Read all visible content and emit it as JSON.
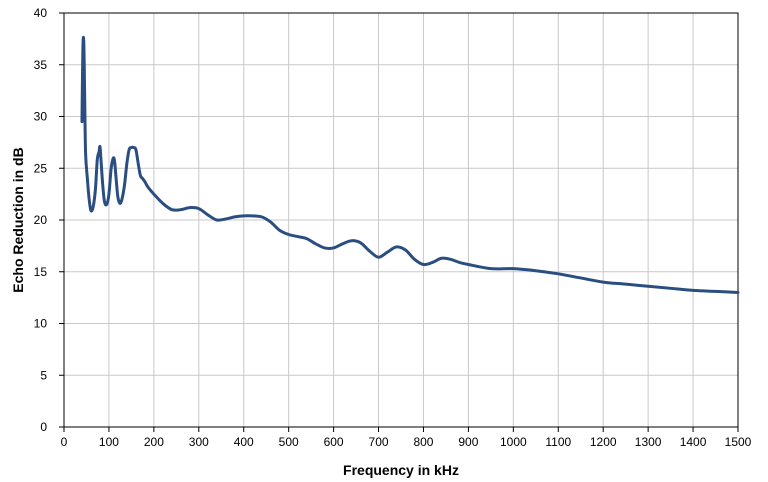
{
  "chart_data": {
    "type": "line",
    "title": "",
    "xlabel": "Frequency in kHz",
    "ylabel": "Echo Reduction in dB",
    "xlim": [
      0,
      1500
    ],
    "ylim": [
      0,
      40
    ],
    "x_ticks": [
      0,
      100,
      200,
      300,
      400,
      500,
      600,
      700,
      800,
      900,
      1000,
      1100,
      1200,
      1300,
      1400,
      1500
    ],
    "y_ticks": [
      0,
      5,
      10,
      15,
      20,
      25,
      30,
      35,
      40
    ],
    "grid": true,
    "legend": "none",
    "series": [
      {
        "color": "#2b4e80",
        "x": [
          40,
          42,
          44,
          46,
          48,
          52,
          56,
          60,
          65,
          70,
          74,
          78,
          80,
          82,
          86,
          90,
          95,
          100,
          105,
          110,
          113,
          116,
          120,
          125,
          130,
          135,
          140,
          145,
          150,
          155,
          160,
          165,
          170,
          175,
          180,
          185,
          190,
          200,
          220,
          240,
          260,
          280,
          300,
          320,
          340,
          360,
          380,
          400,
          420,
          440,
          460,
          480,
          500,
          520,
          540,
          560,
          580,
          600,
          620,
          640,
          660,
          680,
          700,
          720,
          740,
          760,
          780,
          800,
          820,
          840,
          860,
          880,
          900,
          950,
          1000,
          1050,
          1100,
          1150,
          1200,
          1250,
          1300,
          1350,
          1400,
          1450,
          1500
        ],
        "y": [
          29.5,
          36.5,
          37.2,
          32.0,
          26.5,
          24.0,
          22.0,
          20.9,
          21.3,
          23.0,
          25.8,
          26.6,
          27.1,
          26.0,
          23.5,
          21.8,
          21.5,
          22.5,
          25.0,
          26.0,
          25.5,
          24.0,
          22.2,
          21.6,
          22.2,
          23.5,
          25.5,
          26.8,
          27.0,
          27.0,
          26.8,
          25.5,
          24.3,
          24.0,
          23.7,
          23.3,
          23.0,
          22.5,
          21.6,
          21.0,
          21.0,
          21.2,
          21.1,
          20.5,
          20.0,
          20.1,
          20.3,
          20.4,
          20.4,
          20.3,
          19.8,
          19.0,
          18.6,
          18.4,
          18.2,
          17.7,
          17.3,
          17.3,
          17.7,
          18.0,
          17.8,
          17.0,
          16.4,
          16.9,
          17.4,
          17.1,
          16.2,
          15.7,
          15.9,
          16.3,
          16.2,
          15.9,
          15.7,
          15.3,
          15.3,
          15.1,
          14.8,
          14.4,
          14.0,
          13.8,
          13.6,
          13.4,
          13.2,
          13.1,
          13.0
        ]
      }
    ]
  }
}
